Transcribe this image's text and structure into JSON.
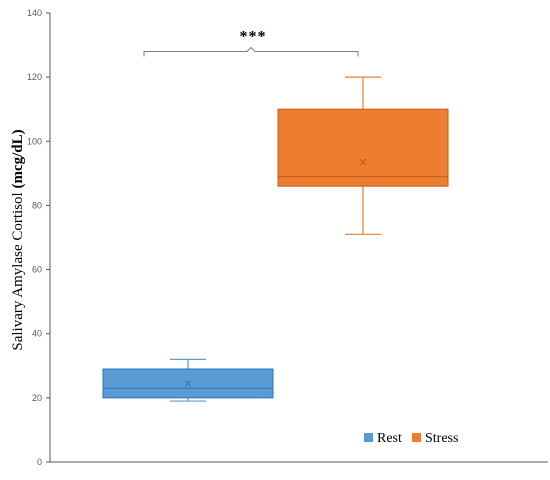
{
  "chart_data": {
    "type": "box",
    "ylabel_prefix": "Salivary Amylase Cortisol ",
    "ylabel_unit": "(mcg/dL)",
    "ylim": [
      0,
      140
    ],
    "yticks": [
      0,
      20,
      40,
      60,
      80,
      100,
      120,
      140
    ],
    "grid": false,
    "legend_position": "bottom-right",
    "series": [
      {
        "name": "Rest",
        "color": "#5b9bd5",
        "stroke": "#2e75b6",
        "min": 19,
        "q1": 20,
        "median": 23,
        "q3": 29,
        "max": 32,
        "mean": 24.5
      },
      {
        "name": "Stress",
        "color": "#ed7d31",
        "stroke": "#c55a11",
        "min": 71,
        "q1": 86,
        "median": 89,
        "q3": 110,
        "max": 120,
        "mean": 93.5
      }
    ],
    "annotation": {
      "text": "***",
      "between": [
        "Rest",
        "Stress"
      ],
      "y": 128
    }
  }
}
